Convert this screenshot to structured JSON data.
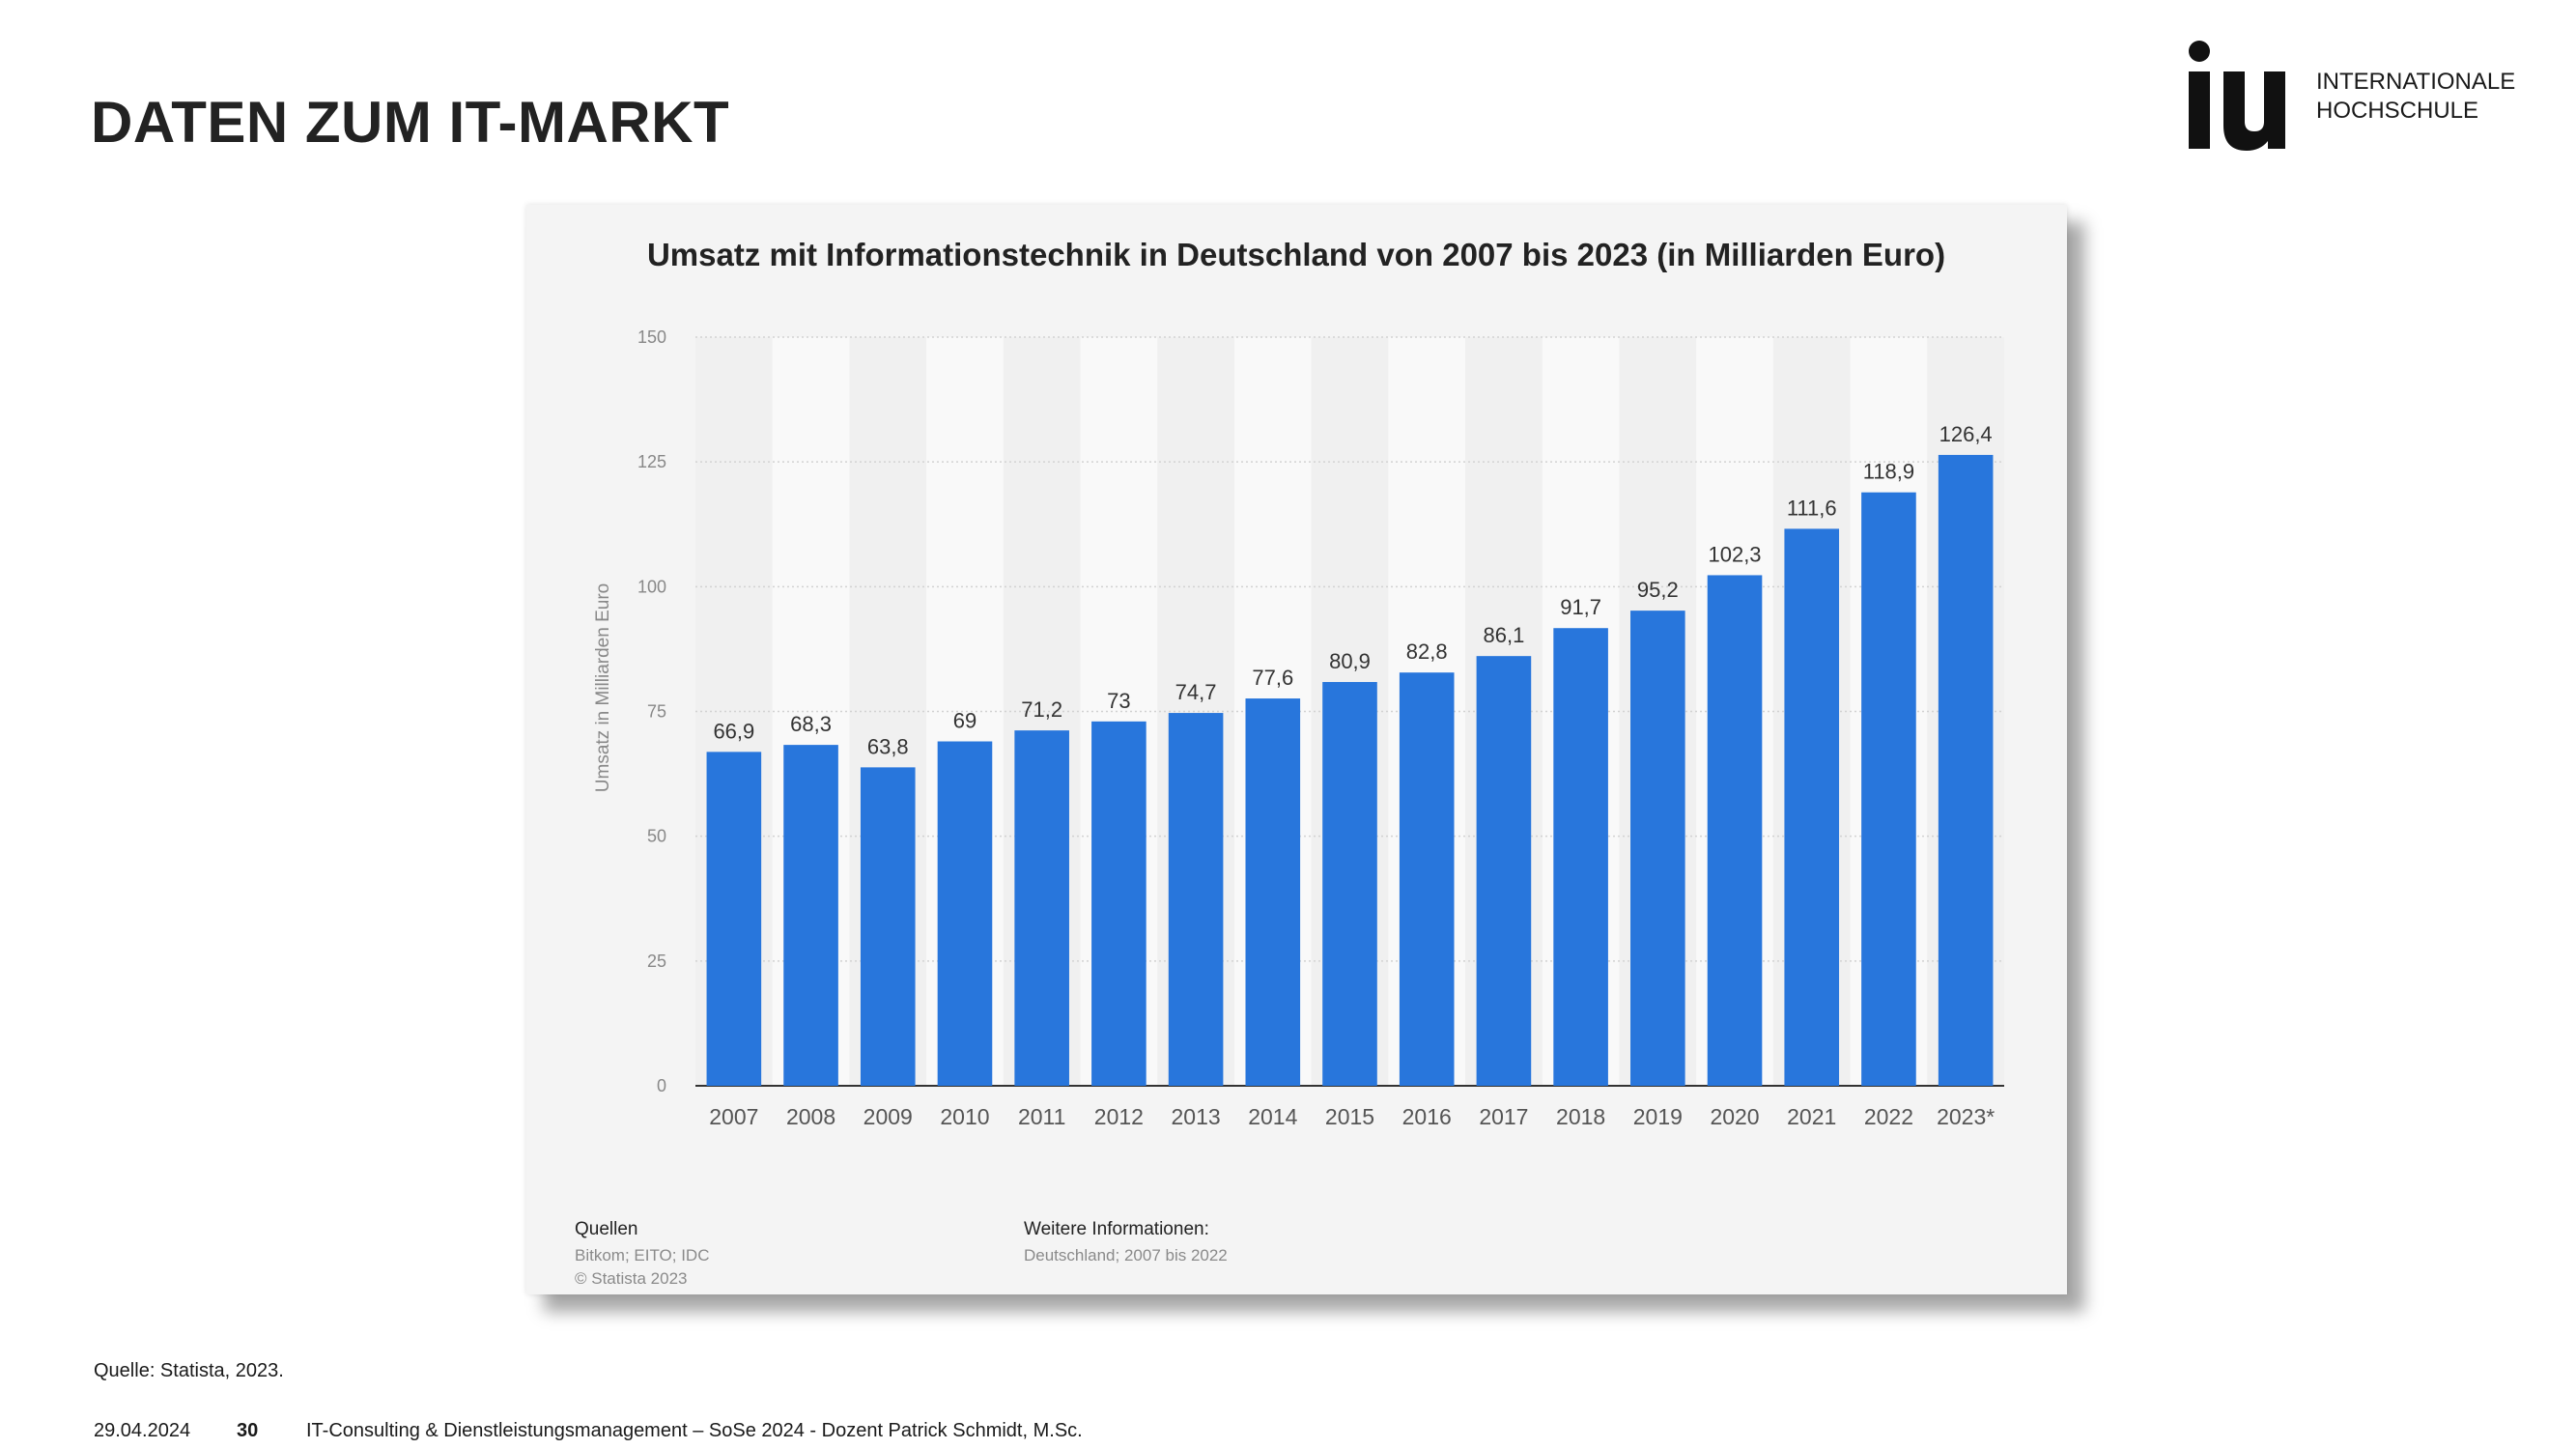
{
  "slide": {
    "title": "DATEN ZUM IT-MARKT",
    "logo": {
      "mark": "iu",
      "line1": "INTERNATIONALE",
      "line2": "HOCHSCHULE"
    },
    "source_note": "Quelle: Statista, 2023.",
    "footer": {
      "date": "29.04.2024",
      "page": "30",
      "course": "IT-Consulting & Dienstleistungsmanagement – SoSe 2024 - Dozent Patrick Schmidt, M.Sc."
    }
  },
  "chart_card": {
    "sources_heading": "Quellen",
    "sources_line1": "Bitkom; EITO; IDC",
    "sources_line2": "© Statista 2023",
    "more_heading": "Weitere Informationen:",
    "more_line1": "Deutschland; 2007 bis 2022"
  },
  "chart_data": {
    "type": "bar",
    "title": "Umsatz mit Informationstechnik in Deutschland von 2007 bis 2023 (in Milliarden Euro)",
    "xlabel": "",
    "ylabel": "Umsatz in Milliarden Euro",
    "ylim": [
      0,
      150
    ],
    "yticks": [
      0,
      25,
      50,
      75,
      100,
      125,
      150
    ],
    "grid": true,
    "bar_color": "#2876dc",
    "categories": [
      "2007",
      "2008",
      "2009",
      "2010",
      "2011",
      "2012",
      "2013",
      "2014",
      "2015",
      "2016",
      "2017",
      "2018",
      "2019",
      "2020",
      "2021",
      "2022",
      "2023*"
    ],
    "values": [
      66.9,
      68.3,
      63.8,
      69,
      71.2,
      73,
      74.7,
      77.6,
      80.9,
      82.8,
      86.1,
      91.7,
      95.2,
      102.3,
      111.6,
      118.9,
      126.4
    ],
    "data_labels": [
      "66,9",
      "68,3",
      "63,8",
      "69",
      "71,2",
      "73",
      "74,7",
      "77,6",
      "80,9",
      "82,8",
      "86,1",
      "91,7",
      "95,2",
      "102,3",
      "111,6",
      "118,9",
      "126,4"
    ]
  }
}
